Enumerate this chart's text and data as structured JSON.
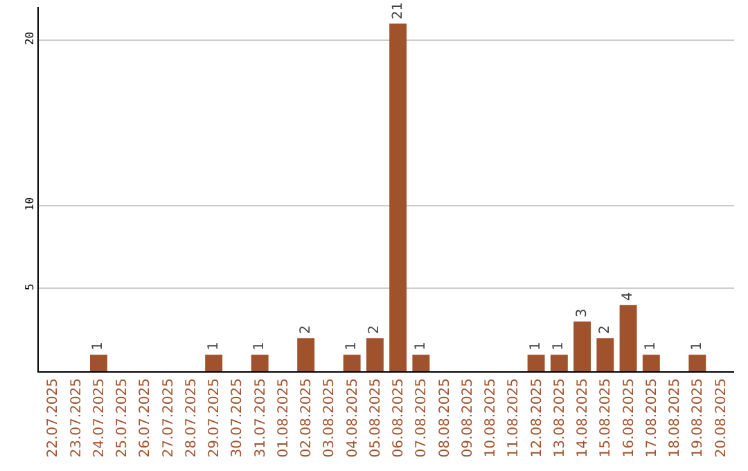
{
  "chart_data": {
    "type": "bar",
    "categories": [
      "22.07.2025",
      "23.07.2025",
      "24.07.2025",
      "25.07.2025",
      "26.07.2025",
      "27.07.2025",
      "28.07.2025",
      "29.07.2025",
      "30.07.2025",
      "31.07.2025",
      "01.08.2025",
      "02.08.2025",
      "03.08.2025",
      "04.08.2025",
      "05.08.2025",
      "06.08.2025",
      "07.08.2025",
      "08.08.2025",
      "09.08.2025",
      "10.08.2025",
      "11.08.2025",
      "12.08.2025",
      "13.08.2025",
      "14.08.2025",
      "15.08.2025",
      "16.08.2025",
      "17.08.2025",
      "18.08.2025",
      "19.08.2025",
      "20.08.2025"
    ],
    "values": [
      0,
      0,
      1,
      0,
      0,
      0,
      0,
      1,
      0,
      1,
      0,
      2,
      0,
      1,
      2,
      21,
      1,
      0,
      0,
      0,
      0,
      1,
      1,
      3,
      2,
      4,
      1,
      0,
      1,
      0
    ],
    "value_labels": [
      null,
      null,
      "1",
      null,
      null,
      null,
      null,
      "1",
      null,
      "1",
      null,
      "2",
      null,
      "1",
      "2",
      "21",
      "1",
      null,
      null,
      null,
      null,
      "1",
      "1",
      "3",
      "2",
      "4",
      "1",
      null,
      "1",
      null
    ],
    "color": "#a0522d",
    "ylim": [
      0,
      22
    ],
    "yticks": [
      5,
      10,
      20
    ],
    "grid": "y"
  }
}
